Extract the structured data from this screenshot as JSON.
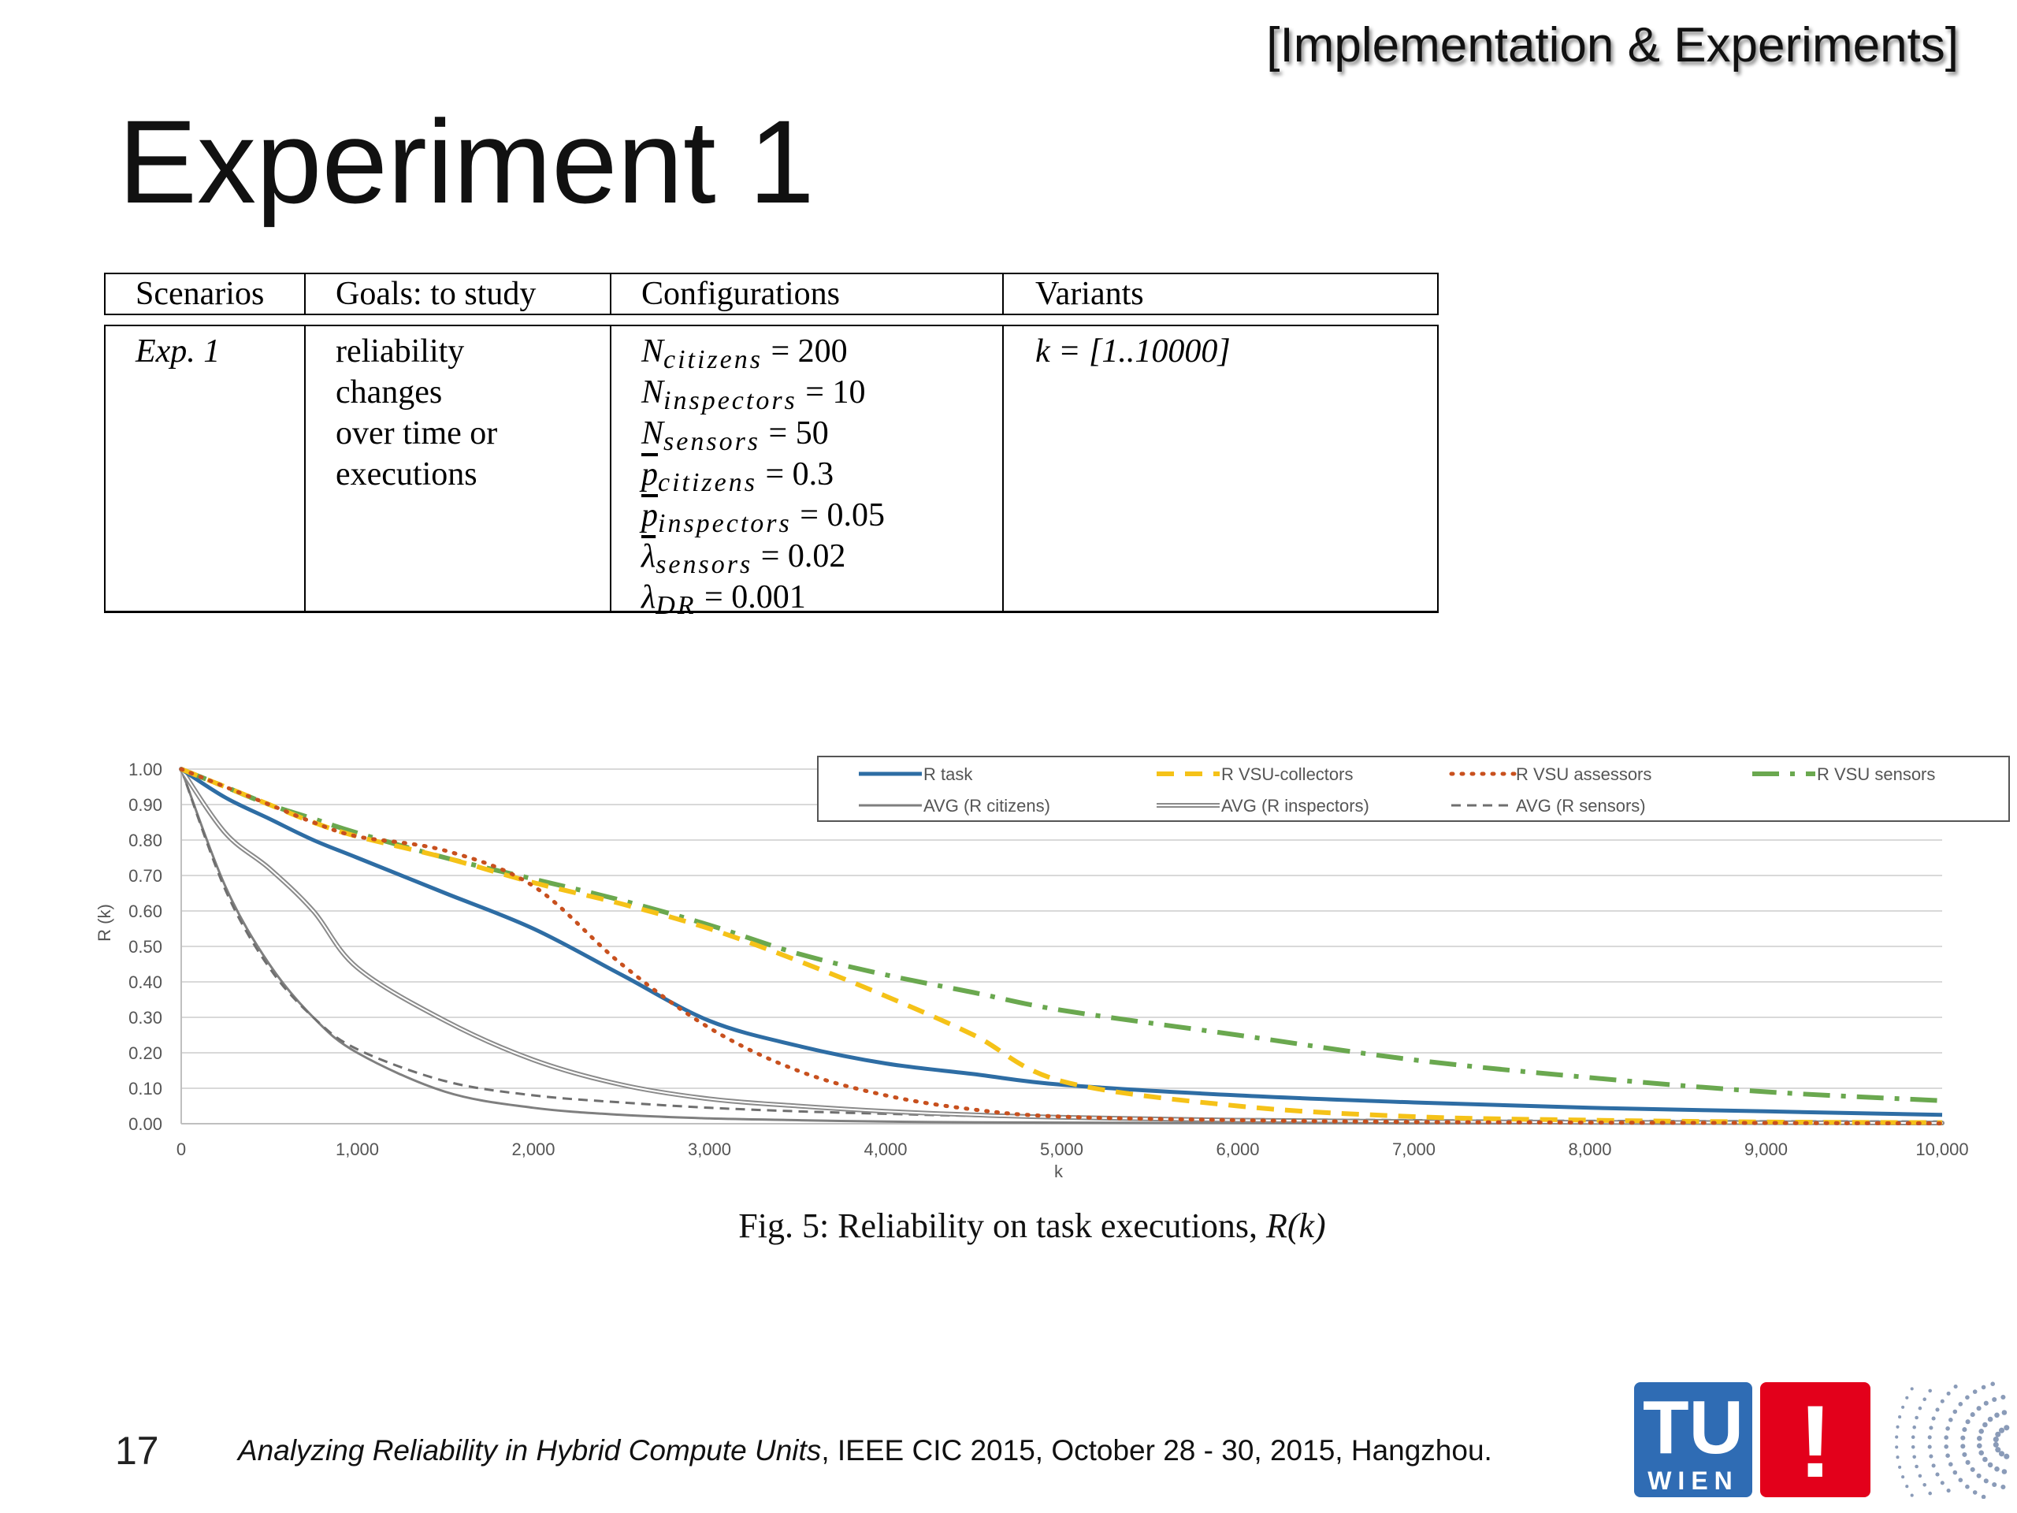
{
  "header": {
    "section_tag": "[Implementation & Experiments]",
    "title": "Experiment 1"
  },
  "table": {
    "headers": [
      "Scenarios",
      "Goals: to study",
      "Configurations",
      "Variants"
    ],
    "scenario": "Exp. 1",
    "goal_lines": [
      "reliability",
      "changes",
      "over time or",
      "executions"
    ],
    "configurations": [
      {
        "symbol": "N",
        "subscript": "citizens",
        "value": "= 200",
        "bar": false
      },
      {
        "symbol": "N",
        "subscript": "inspectors",
        "value": "= 10",
        "bar": false
      },
      {
        "symbol": "N",
        "subscript": "sensors",
        "value": "= 50",
        "bar": false
      },
      {
        "symbol": "p",
        "subscript": "citizens",
        "value": "= 0.3",
        "bar": true
      },
      {
        "symbol": "p",
        "subscript": "inspectors",
        "value": "= 0.05",
        "bar": true
      },
      {
        "symbol": "λ",
        "subscript": "sensors",
        "value": "= 0.02",
        "bar": true
      },
      {
        "symbol": "λ",
        "subscript": "DR",
        "value": "= 0.001",
        "bar": false
      }
    ],
    "variant": "k = [1..10000]"
  },
  "chart_data": {
    "type": "line",
    "title": "",
    "xlabel": "k",
    "ylabel": "R (k)",
    "xlim": [
      0,
      10000
    ],
    "ylim": [
      0,
      1
    ],
    "x_ticks": [
      "0",
      "1,000",
      "2,000",
      "3,000",
      "4,000",
      "5,000",
      "6,000",
      "7,000",
      "8,000",
      "9,000",
      "10,000"
    ],
    "y_ticks": [
      "0.00",
      "0.10",
      "0.20",
      "0.30",
      "0.40",
      "0.50",
      "0.60",
      "0.70",
      "0.80",
      "0.90",
      "1.00"
    ],
    "grid": true,
    "legend_position": "top-right",
    "x": [
      0,
      250,
      500,
      750,
      1000,
      1500,
      2000,
      2500,
      3000,
      3500,
      4000,
      4500,
      5000,
      6000,
      7000,
      8000,
      9000,
      10000
    ],
    "series": [
      {
        "name": "R task",
        "color": "#2e6da4",
        "dash": "solid",
        "width": 5,
        "values": [
          1.0,
          0.92,
          0.86,
          0.8,
          0.75,
          0.65,
          0.55,
          0.42,
          0.29,
          0.22,
          0.17,
          0.14,
          0.11,
          0.08,
          0.06,
          0.045,
          0.035,
          0.025
        ]
      },
      {
        "name": "R VSU-collectors",
        "color": "#f5c218",
        "dash": "long-dash",
        "width": 6,
        "values": [
          1.0,
          0.95,
          0.9,
          0.85,
          0.81,
          0.75,
          0.68,
          0.62,
          0.55,
          0.46,
          0.36,
          0.25,
          0.12,
          0.05,
          0.02,
          0.01,
          0.005,
          0.003
        ]
      },
      {
        "name": "R VSU assessors",
        "color": "#c8501e",
        "dash": "dotted",
        "width": 5,
        "values": [
          1.0,
          0.95,
          0.9,
          0.85,
          0.81,
          0.77,
          0.67,
          0.45,
          0.27,
          0.15,
          0.08,
          0.04,
          0.02,
          0.01,
          0.005,
          0.003,
          0.002,
          0.001
        ]
      },
      {
        "name": "R VSU sensors",
        "color": "#6aa84f",
        "dash": "dash-dot",
        "width": 6,
        "values": [
          1.0,
          0.95,
          0.9,
          0.86,
          0.82,
          0.75,
          0.69,
          0.63,
          0.56,
          0.48,
          0.42,
          0.37,
          0.32,
          0.25,
          0.18,
          0.13,
          0.09,
          0.065
        ]
      },
      {
        "name": "AVG (R citizens)",
        "color": "#7f7f7f",
        "dash": "solid",
        "width": 3,
        "values": [
          1.0,
          0.67,
          0.45,
          0.3,
          0.2,
          0.09,
          0.045,
          0.025,
          0.015,
          0.01,
          0.006,
          0.004,
          0.003,
          0.002,
          0.001,
          0.001,
          0.0,
          0.0
        ]
      },
      {
        "name": "AVG (R inspectors)",
        "color": "#8a8a8a",
        "dash": "double",
        "width": 6,
        "values": [
          1.0,
          0.82,
          0.72,
          0.6,
          0.44,
          0.29,
          0.18,
          0.11,
          0.07,
          0.05,
          0.035,
          0.025,
          0.018,
          0.01,
          0.006,
          0.004,
          0.003,
          0.002
        ]
      },
      {
        "name": "AVG (R sensors)",
        "color": "#6f6f6f",
        "dash": "short-dash",
        "width": 3,
        "values": [
          1.0,
          0.66,
          0.44,
          0.3,
          0.21,
          0.12,
          0.08,
          0.06,
          0.045,
          0.035,
          0.028,
          0.022,
          0.018,
          0.013,
          0.01,
          0.008,
          0.007,
          0.006
        ]
      }
    ]
  },
  "caption": {
    "prefix": "Fig. 5: Reliability on task executions,",
    "math": "R(k)"
  },
  "footer": {
    "slide_number": "17",
    "paper_title": "Analyzing Reliability in Hybrid Compute Units",
    "venue": ", IEEE CIC 2015, October 28 - 30, 2015, Hangzhou."
  },
  "logo": {
    "tu_text": "TU",
    "wien_text": "WIEN",
    "exclamation": "!",
    "blue": "#2f6cb4",
    "red": "#e3001b"
  }
}
